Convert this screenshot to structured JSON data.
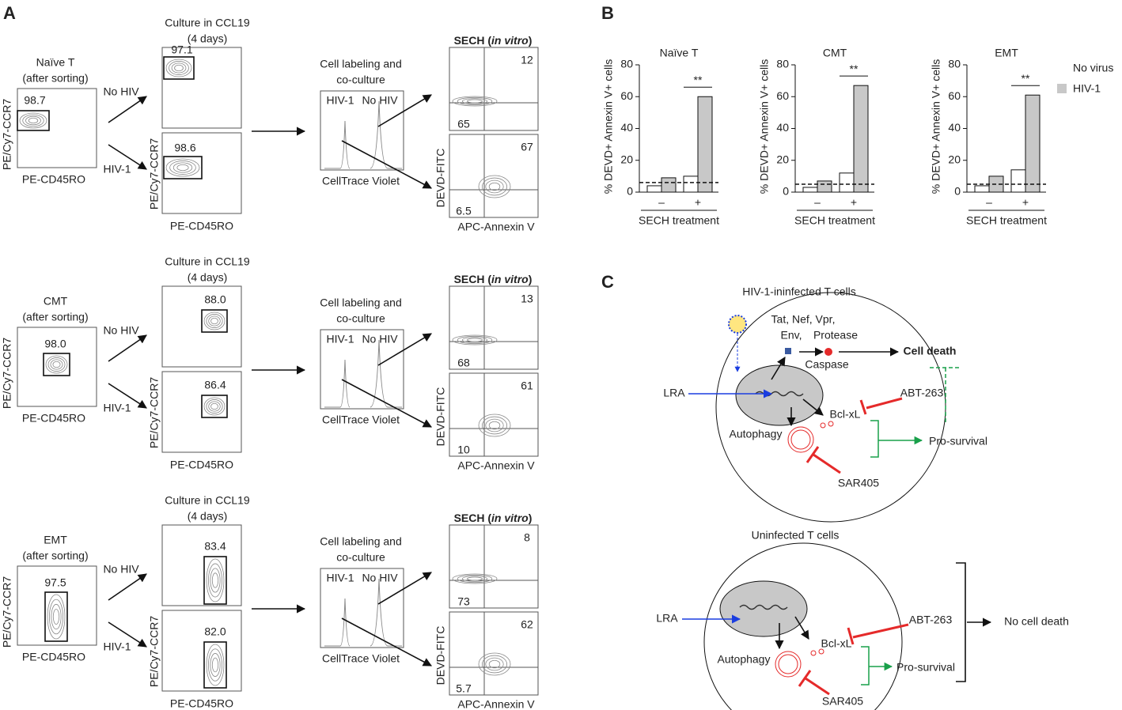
{
  "panel_a": {
    "label": "A",
    "rows": [
      {
        "population": [
          "Naïve T",
          "(after sorting)"
        ],
        "sorted_gate": "98.7",
        "y_axis": "PE/Cy7-CCR7",
        "x_axis": "PE-CD45RO",
        "arrow_no_hiv": "No HIV",
        "arrow_hiv": "HIV-1",
        "culture_title": [
          "Culture in CCL19",
          "(4 days)"
        ],
        "culture_gates": [
          "97.1",
          "98.6"
        ],
        "culture_y_axis": "PE/Cy7-CCR7",
        "culture_x_axis": "PE-CD45RO",
        "labeling_title": [
          "Cell labeling and",
          "co-culture"
        ],
        "peak_labels": [
          "HIV-1",
          "No HIV"
        ],
        "labeling_x_axis": "CellTrace Violet",
        "sech_title": [
          "SECH (",
          "in vitro",
          ")"
        ],
        "quadrants": [
          "12",
          "65",
          "67",
          "6.5"
        ],
        "sech_y_axis": "DEVD-FITC",
        "sech_x_axis": "APC-Annexin V"
      },
      {
        "population": [
          "CMT",
          "(after sorting)"
        ],
        "sorted_gate": "98.0",
        "y_axis": "PE/Cy7-CCR7",
        "x_axis": "PE-CD45RO",
        "arrow_no_hiv": "No HIV",
        "arrow_hiv": "HIV-1",
        "culture_title": [
          "Culture in CCL19",
          "(4 days)"
        ],
        "culture_gates": [
          "88.0",
          "86.4"
        ],
        "culture_y_axis": "PE/Cy7-CCR7",
        "culture_x_axis": "PE-CD45RO",
        "labeling_title": [
          "Cell labeling and",
          "co-culture"
        ],
        "peak_labels": [
          "HIV-1",
          "No HIV"
        ],
        "labeling_x_axis": "CellTrace Violet",
        "sech_title": [
          "SECH (",
          "in vitro",
          ")"
        ],
        "quadrants": [
          "13",
          "68",
          "61",
          "10"
        ],
        "sech_y_axis": "DEVD-FITC",
        "sech_x_axis": "APC-Annexin V"
      },
      {
        "population": [
          "EMT",
          "(after sorting)"
        ],
        "sorted_gate": "97.5",
        "y_axis": "PE/Cy7-CCR7",
        "x_axis": "PE-CD45RO",
        "arrow_no_hiv": "No HIV",
        "arrow_hiv": "HIV-1",
        "culture_title": [
          "Culture in CCL19",
          "(4 days)"
        ],
        "culture_gates": [
          "83.4",
          "82.0"
        ],
        "culture_y_axis": "PE/Cy7-CCR7",
        "culture_x_axis": "PE-CD45RO",
        "labeling_title": [
          "Cell labeling and",
          "co-culture"
        ],
        "peak_labels": [
          "HIV-1",
          "No HIV"
        ],
        "labeling_x_axis": "CellTrace Violet",
        "sech_title": [
          "SECH (",
          "in vitro",
          ")"
        ],
        "quadrants": [
          "8",
          "73",
          "62",
          "5.7"
        ],
        "sech_y_axis": "DEVD-FITC",
        "sech_x_axis": "APC-Annexin V"
      }
    ]
  },
  "panel_b": {
    "label": "B",
    "series": [
      {
        "name": "No virus",
        "color": "#ffffff"
      },
      {
        "name": "HIV-1",
        "color": "#c8c8c8"
      }
    ],
    "charts": [
      {
        "type": "bar",
        "title": "Naïve T",
        "y_label": "% DEVD+ Annexin V+ cells",
        "x_label": "SECH treatment",
        "categories": [
          "–",
          "+"
        ],
        "ylim": [
          0,
          80
        ],
        "yticks": [
          0,
          20,
          40,
          60,
          80
        ],
        "series": [
          {
            "values": [
              4,
              10
            ]
          },
          {
            "values": [
              9,
              60
            ]
          }
        ],
        "baseline": 6,
        "significance": "**"
      },
      {
        "type": "bar",
        "title": "CMT",
        "y_label": "% DEVD+ Annexin V+ cells",
        "x_label": "SECH treatment",
        "categories": [
          "–",
          "+"
        ],
        "ylim": [
          0,
          80
        ],
        "yticks": [
          0,
          20,
          40,
          60,
          80
        ],
        "series": [
          {
            "values": [
              3,
              12
            ]
          },
          {
            "values": [
              7,
              67
            ]
          }
        ],
        "baseline": 5,
        "significance": "**"
      },
      {
        "type": "bar",
        "title": "EMT",
        "y_label": "% DEVD+ Annexin V+ cells",
        "x_label": "SECH treatment",
        "categories": [
          "–",
          "+"
        ],
        "ylim": [
          0,
          80
        ],
        "yticks": [
          0,
          20,
          40,
          60,
          80
        ],
        "series": [
          {
            "values": [
              4,
              14
            ]
          },
          {
            "values": [
              10,
              61
            ]
          }
        ],
        "baseline": 5,
        "significance": "**"
      }
    ]
  },
  "panel_c": {
    "label": "C",
    "infected": {
      "title": "HIV-1-ininfected T cells",
      "proteins": [
        "Tat, Nef, Vpr,",
        "Env,",
        "Protease"
      ],
      "caspase": "Caspase",
      "death": "Cell death",
      "lra": "LRA",
      "abt": "ABT-263",
      "bcl": "Bcl-xL",
      "autophagy": "Autophagy",
      "survival": "Pro-survival",
      "sar": "SAR405"
    },
    "uninfected": {
      "title": "Uninfected T cells",
      "lra": "LRA",
      "abt": "ABT-263",
      "bcl": "Bcl-xL",
      "autophagy": "Autophagy",
      "survival": "Pro-survival",
      "sar": "SAR405",
      "outcome": "No cell death"
    }
  }
}
